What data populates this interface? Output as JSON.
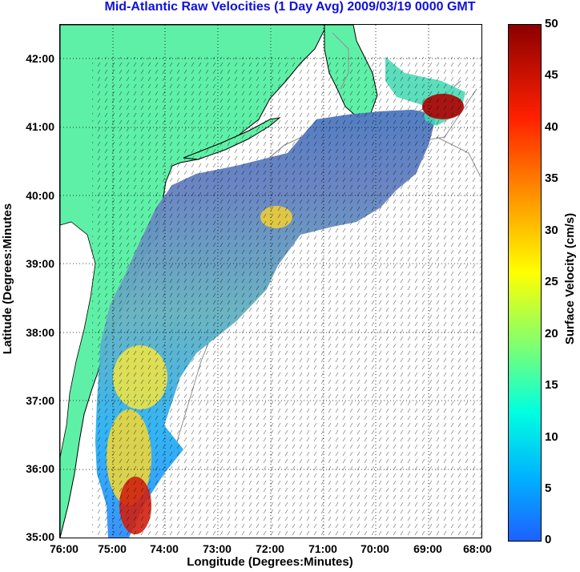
{
  "title": "Mid-Atlantic Raw Velocities (1 Day Avg) 2009/03/19 0000 GMT",
  "xlabel": "Longitude (Degrees:Minutes)",
  "ylabel": "Latitude (Degrees:Minutes",
  "colorbar_label": "Surface Velocity (cm/s)",
  "y_ticks": [
    "42:00",
    "41:00",
    "40:00",
    "39:00",
    "38:00",
    "37:00",
    "36:00",
    "35:00"
  ],
  "x_ticks": [
    "76:00",
    "75:00",
    "74:00",
    "73:00",
    "72:00",
    "71:00",
    "70:00",
    "69:00",
    "68:00"
  ],
  "colorbar_ticks": [
    "50",
    "45",
    "40",
    "35",
    "30",
    "25",
    "20",
    "15",
    "10",
    "5",
    "0"
  ],
  "colors": {
    "land": "#5ff0a8",
    "title": "#1010e0",
    "low": "#1e6cff",
    "high": "#8b0000"
  },
  "extent": {
    "lon": [
      -76,
      -68
    ],
    "lat": [
      35,
      42.5
    ]
  },
  "colorbar_range": [
    0,
    50
  ]
}
